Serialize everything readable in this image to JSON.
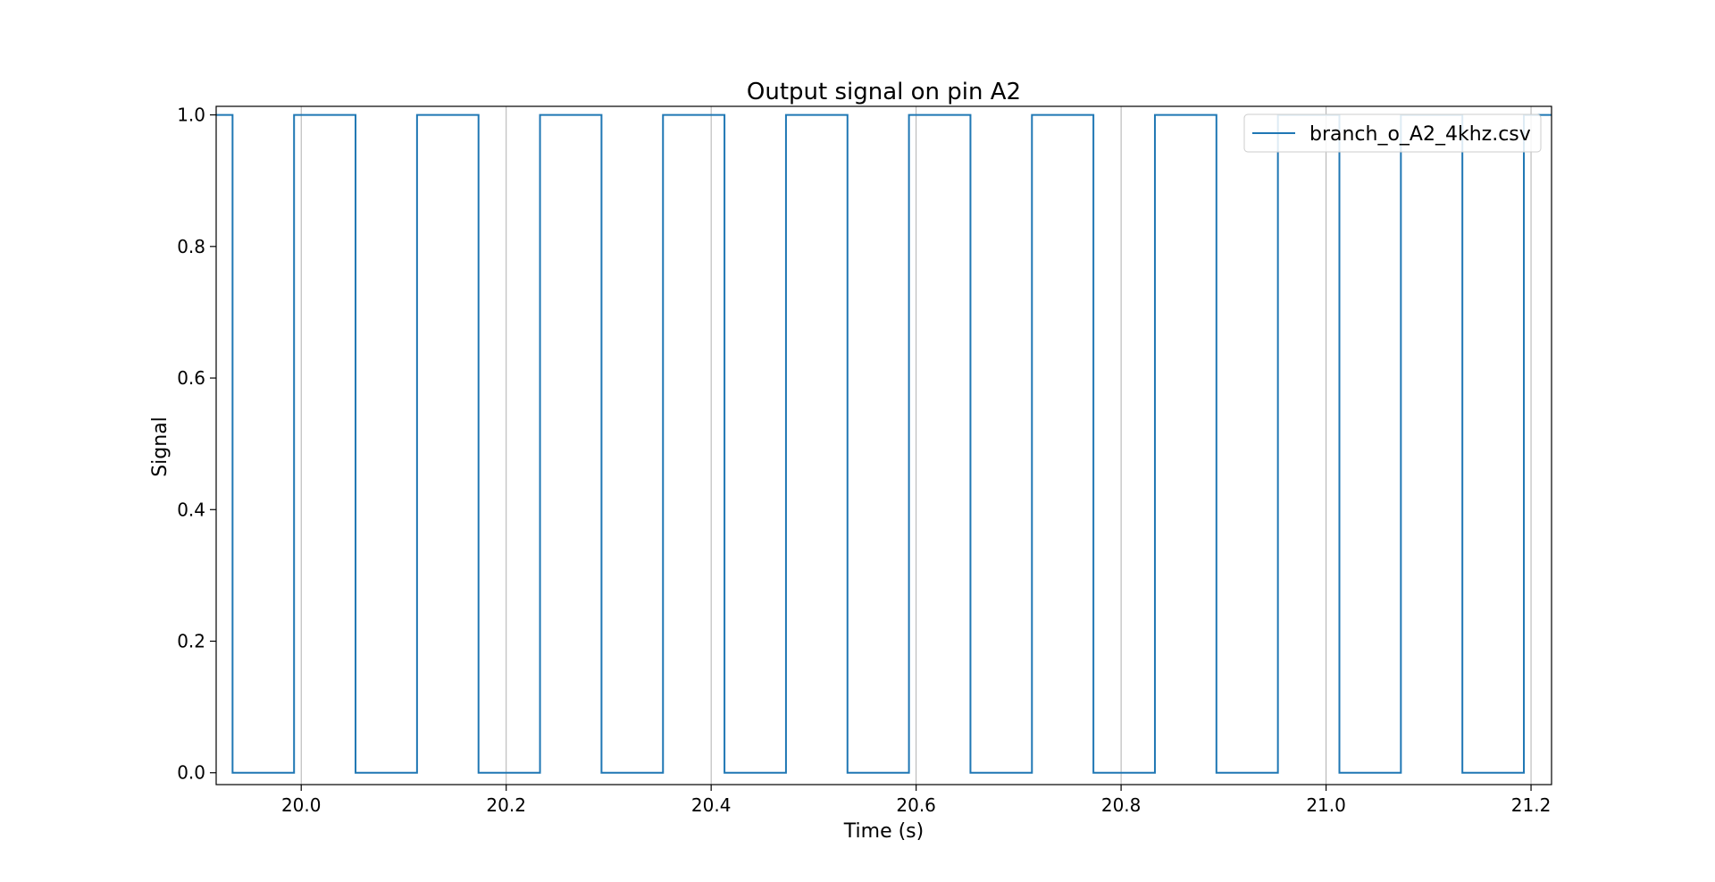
{
  "chart_data": {
    "type": "line",
    "title": "Output signal on pin A2",
    "xlabel": "Time (s)",
    "ylabel": "Signal",
    "xlim": [
      19.917,
      21.22
    ],
    "ylim": [
      -0.018,
      1.013
    ],
    "x_ticks": [
      20.0,
      20.2,
      20.4,
      20.6,
      20.8,
      21.0,
      21.2
    ],
    "x_tick_labels": [
      "20.0",
      "20.2",
      "20.4",
      "20.6",
      "20.8",
      "21.0",
      "21.2"
    ],
    "y_ticks": [
      0.0,
      0.2,
      0.4,
      0.6,
      0.8,
      1.0
    ],
    "y_tick_labels": [
      "0.0",
      "0.2",
      "0.4",
      "0.6",
      "0.8",
      "1.0"
    ],
    "grid": "vertical",
    "legend_position": "top-right",
    "series": [
      {
        "name": "branch_o_A2_4khz.csv",
        "color": "#1f77b4",
        "step": true,
        "x": [
          19.917,
          19.933,
          19.933,
          19.993,
          19.993,
          20.053,
          20.053,
          20.113,
          20.113,
          20.173,
          20.173,
          20.233,
          20.233,
          20.293,
          20.293,
          20.353,
          20.353,
          20.413,
          20.413,
          20.473,
          20.473,
          20.533,
          20.533,
          20.593,
          20.593,
          20.653,
          20.653,
          20.713,
          20.713,
          20.773,
          20.773,
          20.833,
          20.833,
          20.893,
          20.893,
          20.953,
          20.953,
          21.013,
          21.013,
          21.073,
          21.073,
          21.133,
          21.133,
          21.193,
          21.193,
          21.22
        ],
        "y": [
          1,
          1,
          0,
          0,
          1,
          1,
          0,
          0,
          1,
          1,
          0,
          0,
          1,
          1,
          0,
          0,
          1,
          1,
          0,
          0,
          1,
          1,
          0,
          0,
          1,
          1,
          0,
          0,
          1,
          1,
          0,
          0,
          1,
          1,
          0,
          0,
          1,
          1,
          0,
          0,
          1,
          1,
          0,
          0,
          1,
          1
        ]
      }
    ]
  }
}
